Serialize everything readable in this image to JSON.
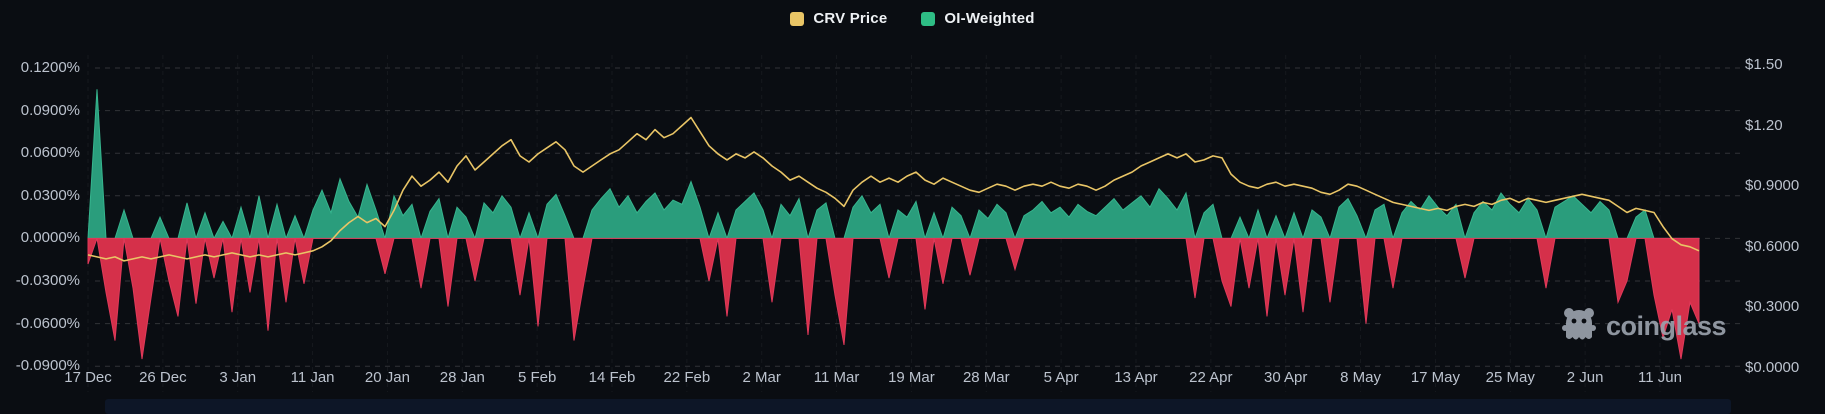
{
  "legend": [
    {
      "label": "CRV Price",
      "color": "#e9c566"
    },
    {
      "label": "OI-Weighted",
      "color": "#2ebd85"
    }
  ],
  "watermark": {
    "text": "coinglass",
    "icon": "coinglass-ghost-icon"
  },
  "colors": {
    "background": "#0a0d12",
    "price_line": "#e9c566",
    "funding_positive": "#2a9d7c",
    "funding_positive_edge": "#36b58e",
    "funding_negative": "#d5304a",
    "funding_negative_edge": "#e0395a",
    "axis_text": "#bcc3ce",
    "grid": "rgba(255,255,255,0.16)",
    "navigator": "#0d1627"
  },
  "chart_data": {
    "type": "mixed",
    "subtype": "line + positive/negative area (funding rate)",
    "grid": "horizontal dashed + faint vertical dashed",
    "legend_position": "top-center",
    "x_tick_labels": [
      "17 Dec",
      "26 Dec",
      "3 Jan",
      "11 Jan",
      "20 Jan",
      "28 Jan",
      "5 Feb",
      "14 Feb",
      "22 Feb",
      "2 Mar",
      "11 Mar",
      "19 Mar",
      "28 Mar",
      "5 Apr",
      "13 Apr",
      "22 Apr",
      "30 Apr",
      "8 May",
      "17 May",
      "25 May",
      "2 Jun",
      "11 Jun"
    ],
    "x_range": "17 Dec - 14 Jun, daily points",
    "left_axis": {
      "unit": "%",
      "tick_labels": [
        "0.1200%",
        "0.0900%",
        "0.0600%",
        "0.0300%",
        "0.0000%",
        "-0.0300%",
        "-0.0600%",
        "-0.0900%"
      ],
      "min": -0.09,
      "max": 0.12,
      "tick_step": 0.03
    },
    "right_axis": {
      "unit": "$",
      "tick_labels": [
        "$1.50",
        "$1.20",
        "$0.9000",
        "$0.6000",
        "$0.3000",
        "$0.0000"
      ],
      "min": 0.0,
      "max": 1.5,
      "tick_step": 0.3
    },
    "series": [
      {
        "name": "OI-Weighted",
        "type": "area",
        "axis": "left",
        "unit": "%",
        "values": [
          -0.018,
          0.105,
          -0.038,
          -0.072,
          0.02,
          -0.035,
          -0.085,
          -0.042,
          0.015,
          -0.03,
          -0.055,
          0.025,
          -0.046,
          0.018,
          -0.028,
          0.012,
          -0.052,
          0.022,
          -0.038,
          0.03,
          -0.065,
          0.024,
          -0.045,
          0.016,
          -0.032,
          0.02,
          0.034,
          0.018,
          0.042,
          0.026,
          0.015,
          0.038,
          0.02,
          -0.025,
          0.03,
          0.016,
          0.024,
          -0.035,
          0.019,
          0.028,
          -0.048,
          0.022,
          0.015,
          -0.03,
          0.025,
          0.018,
          0.03,
          0.022,
          -0.04,
          0.018,
          -0.062,
          0.024,
          0.031,
          0.016,
          -0.072,
          -0.035,
          0.02,
          0.028,
          0.035,
          0.022,
          0.03,
          0.018,
          0.026,
          0.032,
          0.02,
          0.027,
          0.024,
          0.04,
          0.022,
          -0.03,
          0.018,
          -0.055,
          0.02,
          0.026,
          0.032,
          0.02,
          -0.045,
          0.024,
          0.016,
          0.028,
          -0.068,
          0.02,
          0.025,
          -0.04,
          -0.075,
          0.022,
          0.03,
          0.018,
          0.024,
          -0.028,
          0.02,
          0.015,
          0.026,
          -0.05,
          0.018,
          -0.032,
          0.022,
          0.016,
          -0.026,
          0.02,
          0.014,
          0.024,
          0.018,
          -0.022,
          0.016,
          0.02,
          0.026,
          0.018,
          0.022,
          0.015,
          0.024,
          0.019,
          0.016,
          0.022,
          0.028,
          0.02,
          0.025,
          0.03,
          0.022,
          0.035,
          0.028,
          0.02,
          0.032,
          -0.042,
          0.018,
          0.024,
          -0.03,
          -0.048,
          0.015,
          -0.035,
          0.02,
          -0.055,
          0.016,
          -0.04,
          0.018,
          -0.052,
          0.02,
          0.015,
          -0.045,
          0.022,
          0.028,
          0.016,
          -0.06,
          0.02,
          0.024,
          -0.035,
          0.018,
          0.026,
          0.02,
          0.03,
          0.022,
          0.016,
          0.024,
          -0.028,
          0.018,
          0.026,
          0.02,
          0.032,
          0.024,
          0.018,
          0.028,
          0.02,
          -0.035,
          0.022,
          0.026,
          0.03,
          0.024,
          0.018,
          0.026,
          0.02,
          -0.045,
          -0.03,
          0.015,
          0.02,
          -0.04,
          -0.07,
          -0.05,
          -0.085,
          -0.045,
          -0.06
        ]
      },
      {
        "name": "CRV Price",
        "type": "line",
        "axis": "right",
        "unit": "$",
        "values": [
          0.56,
          0.55,
          0.54,
          0.55,
          0.53,
          0.54,
          0.55,
          0.54,
          0.55,
          0.56,
          0.55,
          0.54,
          0.55,
          0.56,
          0.55,
          0.56,
          0.57,
          0.56,
          0.55,
          0.56,
          0.55,
          0.56,
          0.57,
          0.56,
          0.57,
          0.58,
          0.6,
          0.63,
          0.68,
          0.72,
          0.75,
          0.72,
          0.74,
          0.7,
          0.78,
          0.88,
          0.95,
          0.9,
          0.93,
          0.97,
          0.92,
          1.0,
          1.05,
          0.98,
          1.02,
          1.06,
          1.1,
          1.13,
          1.05,
          1.02,
          1.06,
          1.09,
          1.12,
          1.08,
          1.0,
          0.97,
          1.0,
          1.03,
          1.06,
          1.08,
          1.12,
          1.16,
          1.13,
          1.18,
          1.14,
          1.16,
          1.2,
          1.24,
          1.17,
          1.1,
          1.06,
          1.03,
          1.06,
          1.04,
          1.07,
          1.04,
          1.0,
          0.97,
          0.93,
          0.95,
          0.92,
          0.89,
          0.87,
          0.84,
          0.8,
          0.88,
          0.92,
          0.95,
          0.92,
          0.94,
          0.92,
          0.95,
          0.97,
          0.93,
          0.91,
          0.94,
          0.92,
          0.9,
          0.88,
          0.87,
          0.89,
          0.91,
          0.9,
          0.88,
          0.9,
          0.91,
          0.9,
          0.92,
          0.9,
          0.89,
          0.91,
          0.9,
          0.88,
          0.9,
          0.93,
          0.95,
          0.97,
          1.0,
          1.02,
          1.04,
          1.06,
          1.04,
          1.06,
          1.02,
          1.03,
          1.05,
          1.04,
          0.96,
          0.92,
          0.9,
          0.89,
          0.91,
          0.92,
          0.9,
          0.91,
          0.9,
          0.89,
          0.87,
          0.86,
          0.88,
          0.91,
          0.9,
          0.88,
          0.86,
          0.84,
          0.82,
          0.81,
          0.8,
          0.79,
          0.78,
          0.79,
          0.78,
          0.8,
          0.81,
          0.8,
          0.82,
          0.81,
          0.83,
          0.84,
          0.82,
          0.84,
          0.83,
          0.82,
          0.83,
          0.84,
          0.85,
          0.86,
          0.85,
          0.84,
          0.83,
          0.8,
          0.77,
          0.79,
          0.78,
          0.77,
          0.7,
          0.64,
          0.61,
          0.6,
          0.58
        ]
      }
    ]
  }
}
